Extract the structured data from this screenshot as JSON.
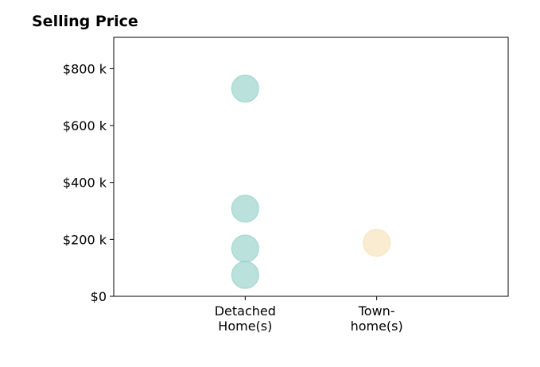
{
  "chart_data": {
    "type": "scatter",
    "title": "Selling Price",
    "categories": [
      "Detached\nHome(s)",
      "Town-\nhome(s)"
    ],
    "ytick_labels": [
      "$0",
      "$200 k",
      "$400 k",
      "$600 k",
      "$800 k"
    ],
    "yticks": [
      0,
      200000,
      400000,
      600000,
      800000
    ],
    "ylim": [
      0,
      910000
    ],
    "xlim": [
      -1,
      2
    ],
    "grid": false,
    "series": [
      {
        "category": "Detached\nHome(s)",
        "color": "#8ecdc4",
        "values": [
          730000,
          308000,
          168000,
          75000
        ]
      },
      {
        "category": "Town-\nhome(s)",
        "color": "#f6dfb0",
        "values": [
          188000
        ]
      }
    ]
  }
}
